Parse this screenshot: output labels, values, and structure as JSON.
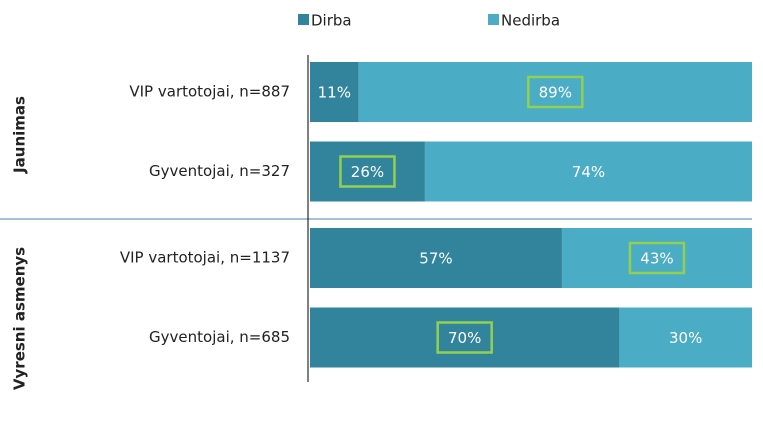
{
  "chart_data": {
    "type": "stacked-bar-horizontal",
    "groups": [
      {
        "name": "Jaunimas",
        "categories": [
          "VIP vartotojai, n=887",
          "Gyventojai, n=327"
        ]
      },
      {
        "name": "Vyresni asmenys",
        "categories": [
          "VIP vartotojai, n=1137",
          "Gyventojai, n=685"
        ]
      }
    ],
    "series": [
      {
        "name": "Dirba",
        "color": "#31849b",
        "values": [
          11,
          26,
          57,
          70
        ],
        "value_labels": [
          "11%",
          "26%",
          "57%",
          "70%"
        ],
        "highlight": [
          false,
          true,
          false,
          true
        ]
      },
      {
        "name": "Nedirba",
        "color": "#4bacc6",
        "values": [
          89,
          74,
          43,
          30
        ],
        "value_labels": [
          "89%",
          "74%",
          "43%",
          "30%"
        ],
        "highlight": [
          true,
          false,
          true,
          false
        ]
      }
    ],
    "highlight_color": "#92d050",
    "xlim": [
      0,
      100
    ],
    "legend": "top"
  }
}
